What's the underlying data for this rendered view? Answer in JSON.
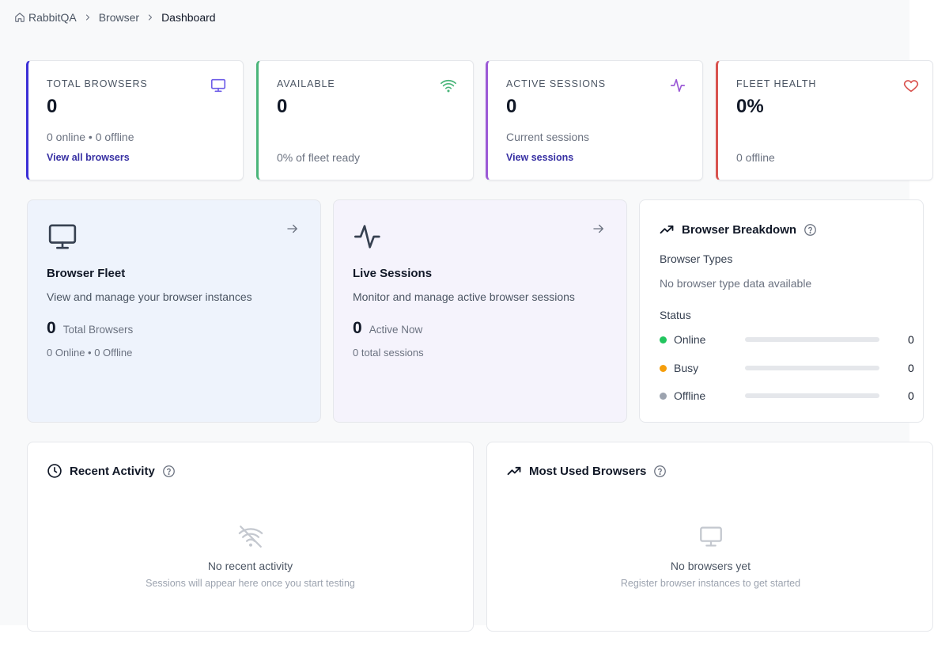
{
  "breadcrumb": {
    "items": [
      "RabbitQA",
      "Browser",
      "Dashboard"
    ]
  },
  "stats": [
    {
      "label": "TOTAL BROWSERS",
      "value": "0",
      "sub": "0 online • 0 offline",
      "link": "View all browsers",
      "accent": "#3b2fd6",
      "icon": "monitor-icon"
    },
    {
      "label": "AVAILABLE",
      "value": "0",
      "sub": "0% of fleet ready",
      "accent": "#4ab57a",
      "icon": "wifi-icon"
    },
    {
      "label": "ACTIVE SESSIONS",
      "value": "0",
      "sub": "Current sessions",
      "link": "View sessions",
      "accent": "#9b59d6",
      "icon": "activity-icon"
    },
    {
      "label": "FLEET HEALTH",
      "value": "0%",
      "sub": "0 offline",
      "accent": "#d9534f",
      "icon": "heart-icon"
    }
  ],
  "fleet": {
    "title": "Browser Fleet",
    "description": "View and manage your browser instances",
    "count": "0",
    "count_label": "Total Browsers",
    "meta": "0 Online • 0 Offline",
    "bg": "#eef3fc"
  },
  "sessions": {
    "title": "Live Sessions",
    "description": "Monitor and manage active browser sessions",
    "count": "0",
    "count_label": "Active Now",
    "meta": "0 total sessions",
    "bg": "#f5f3fc"
  },
  "breakdown": {
    "title": "Browser Breakdown",
    "types_label": "Browser Types",
    "types_empty": "No browser type data available",
    "status_label": "Status",
    "statuses": [
      {
        "name": "Online",
        "count": "0",
        "fraction": 0,
        "color": "#22c55e"
      },
      {
        "name": "Busy",
        "count": "0",
        "fraction": 0,
        "color": "#f59e0b"
      },
      {
        "name": "Offline",
        "count": "0",
        "fraction": 0,
        "color": "#9ca3af"
      }
    ]
  },
  "recent_activity": {
    "title": "Recent Activity",
    "empty_title": "No recent activity",
    "empty_sub": "Sessions will appear here once you start testing"
  },
  "most_used": {
    "title": "Most Used Browsers",
    "empty_title": "No browsers yet",
    "empty_sub": "Register browser instances to get started"
  }
}
